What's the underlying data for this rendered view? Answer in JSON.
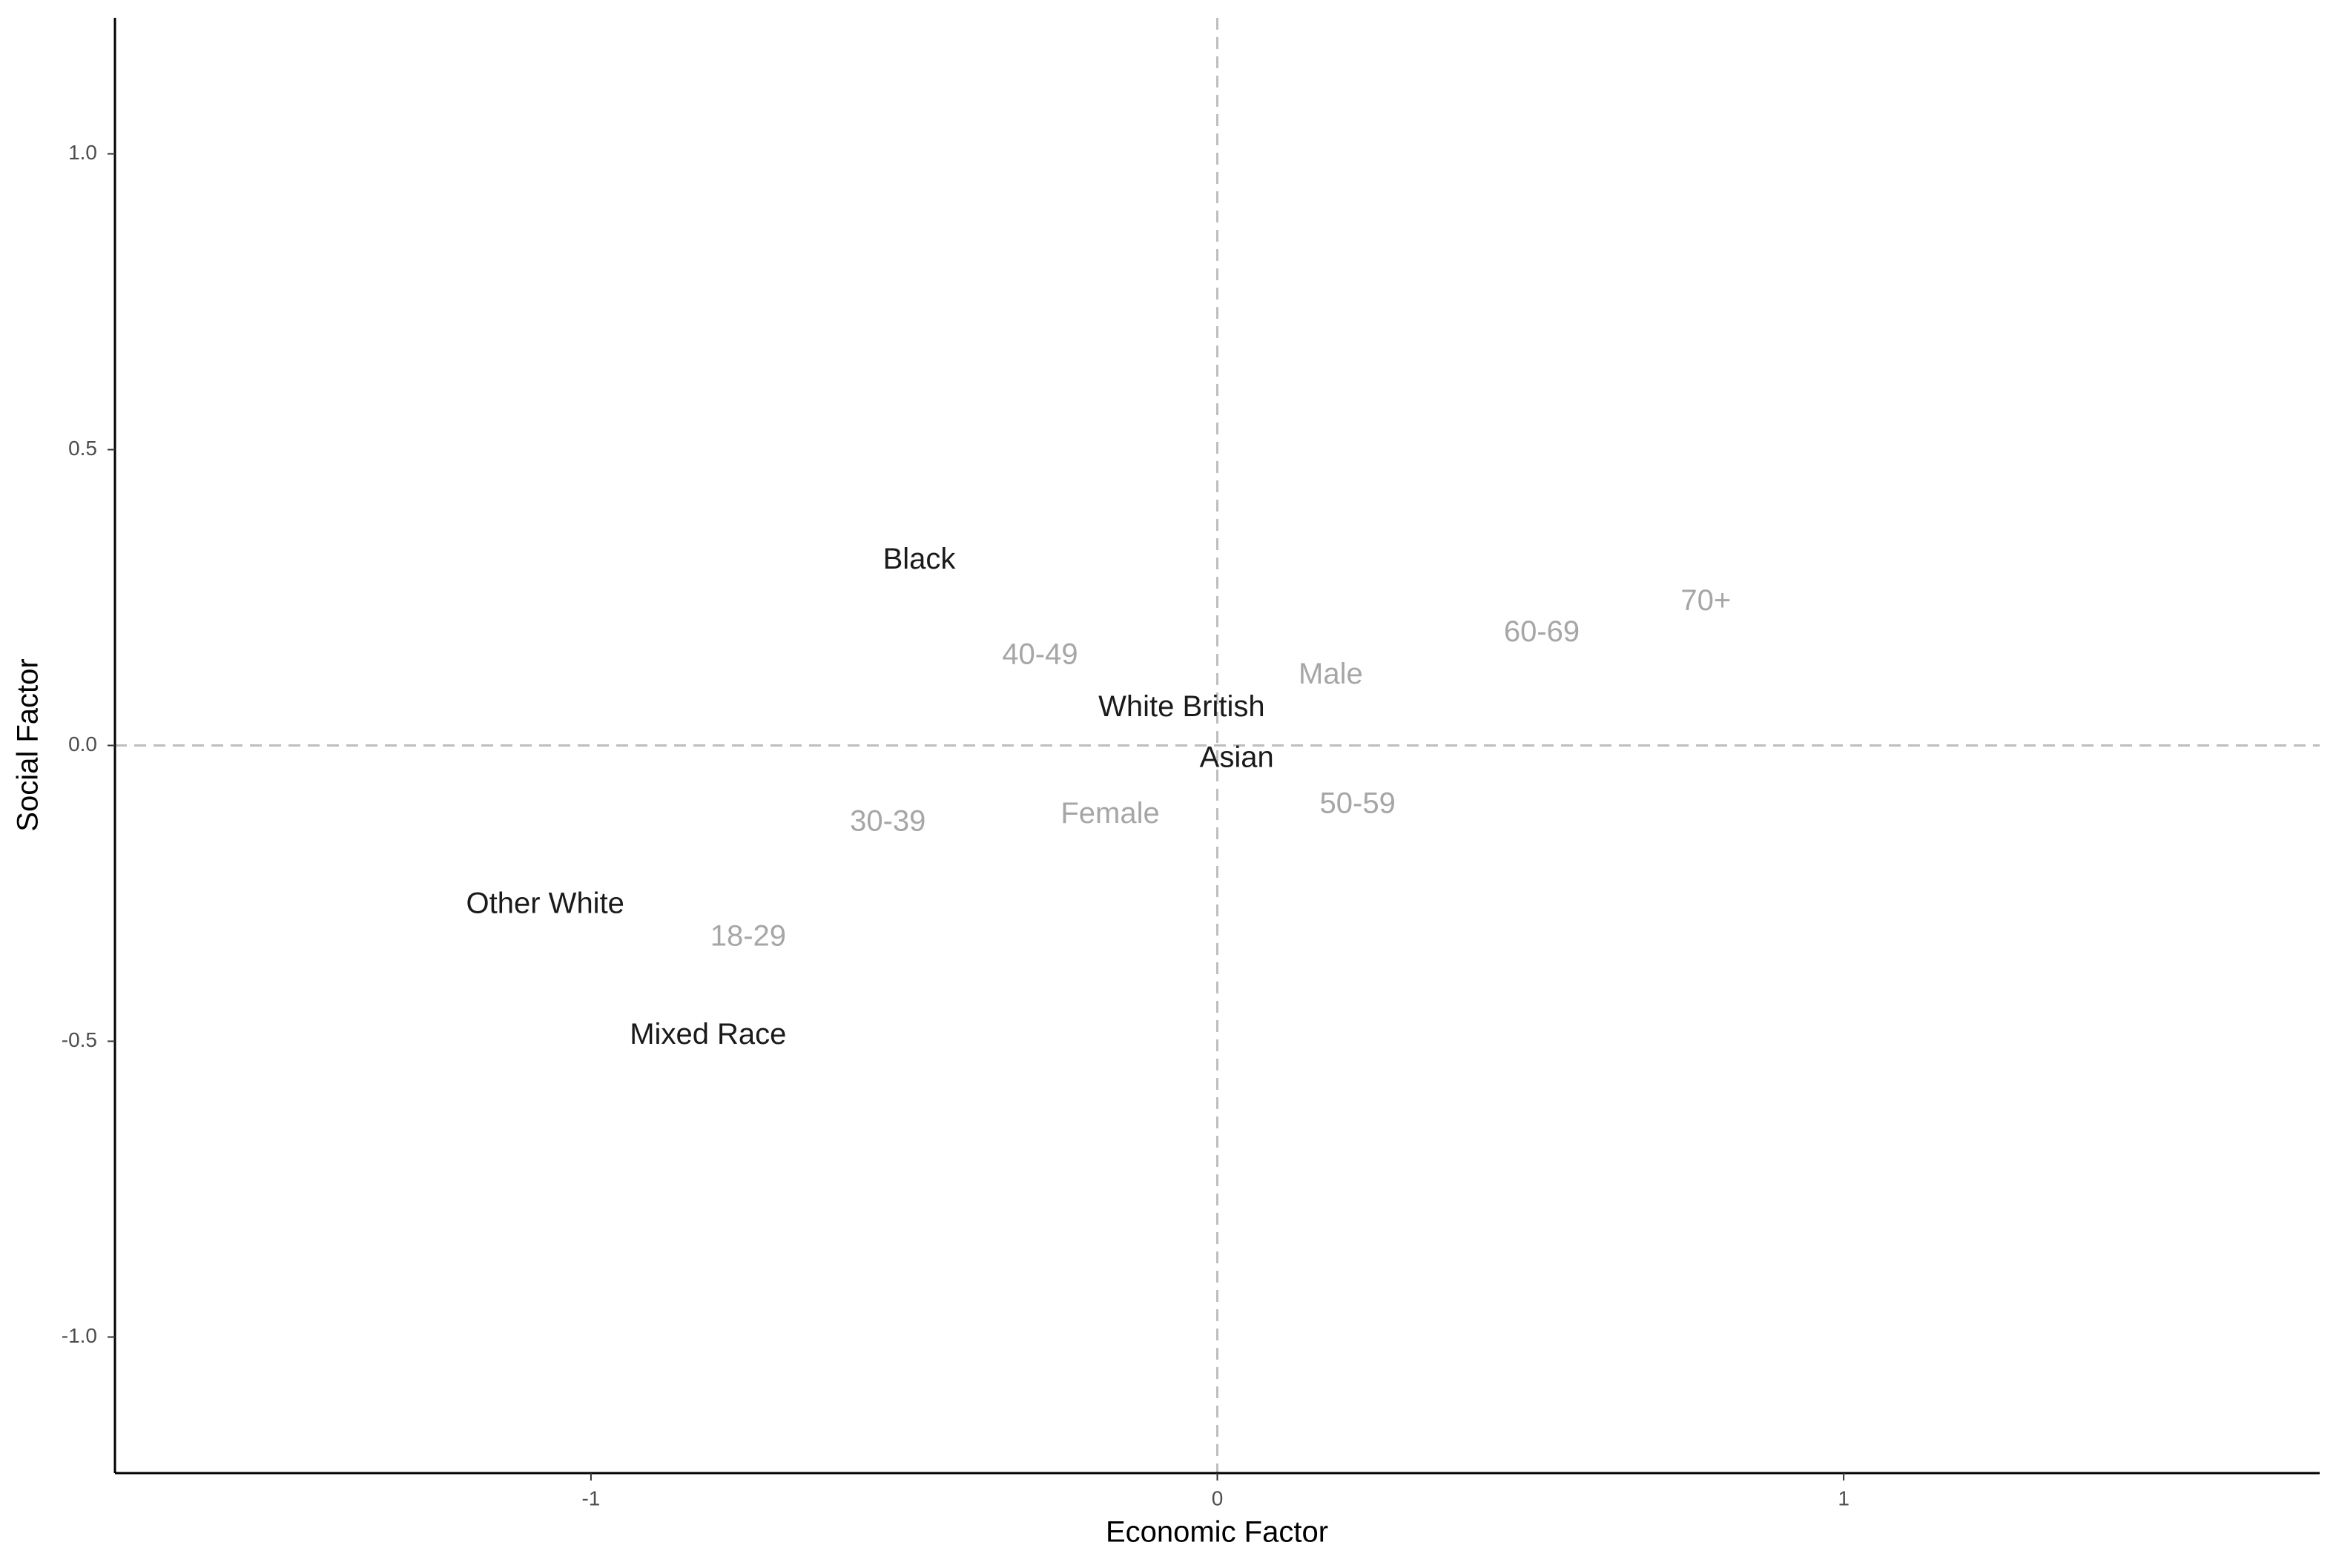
{
  "chart_data": {
    "type": "text-scatter",
    "x_label": "Economic Factor",
    "y_label": "Social Factor",
    "xlim": [
      -1.76,
      1.76
    ],
    "ylim": [
      -1.23,
      1.23
    ],
    "xticks": [
      -1,
      0,
      1
    ],
    "yticks": [
      {
        "value": -1,
        "label": "-1.0"
      },
      {
        "value": -0.5,
        "label": "-0.5"
      },
      {
        "value": 0,
        "label": "0.0"
      },
      {
        "value": 0.5,
        "label": "0.5"
      },
      {
        "value": 1,
        "label": "1.0"
      }
    ],
    "reference_lines": {
      "x": 0,
      "y": 0,
      "color": "#bebebe"
    },
    "series": [
      {
        "color": "#1a1a1a",
        "labels": [
          "Black",
          "White British",
          "Asian",
          "Other White",
          "Mixed Race"
        ],
        "x": [
          -0.476,
          -0.057,
          0.031,
          -1.073,
          -0.813
        ],
        "values": [
          0.312,
          0.063,
          -0.023,
          -0.27,
          -0.491
        ]
      },
      {
        "color": "#a6a6a6",
        "labels": [
          "40-49",
          "Male",
          "60-69",
          "70+",
          "50-59",
          "Female",
          "30-39",
          "18-29"
        ],
        "x": [
          -0.283,
          0.181,
          0.518,
          0.78,
          0.224,
          -0.171,
          -0.526,
          -0.749
        ],
        "values": [
          0.151,
          0.118,
          0.189,
          0.242,
          -0.101,
          -0.118,
          -0.131,
          -0.325
        ]
      }
    ]
  }
}
